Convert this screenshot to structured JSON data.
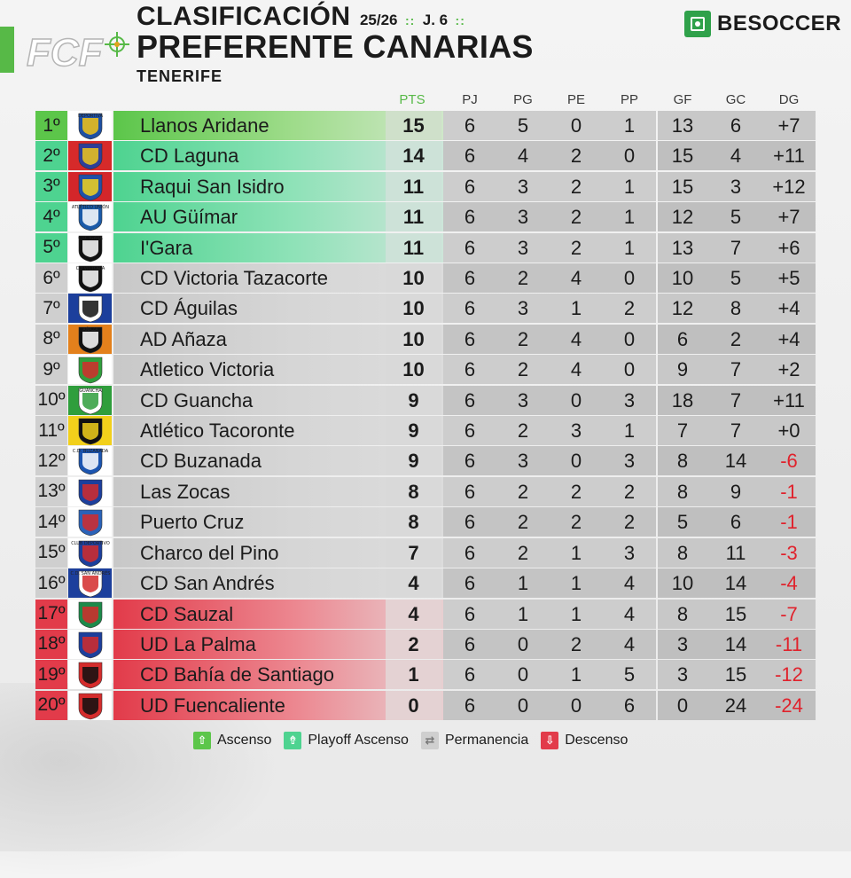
{
  "header": {
    "title": "CLASIFICACIÓN",
    "season": "25/26",
    "separator": "::",
    "matchday": "J. 6",
    "league": "PREFERENTE CANARIAS",
    "region": "TENERIFE",
    "logo_text": "FCF",
    "brand": "BESOCCER",
    "brand_icon": "field-icon"
  },
  "columns": [
    "PTS",
    "PJ",
    "PG",
    "PE",
    "PP",
    "GF",
    "GC",
    "DG"
  ],
  "colors": {
    "ascenso": "#5cc64a",
    "playoff": "#4ed390",
    "permanencia": "#cfcfcf",
    "descenso": "#e23b4a",
    "negative": "#e0222c",
    "brand": "#2fa14a"
  },
  "rows": [
    {
      "pos": "1º",
      "team": "Llanos Aridane",
      "zone": "ascenso",
      "pts": "15",
      "pj": "6",
      "pg": "5",
      "pe": "0",
      "pp": "1",
      "gf": "13",
      "gc": "6",
      "dg": "+7",
      "crest": [
        "#ffffff",
        "#1d4fa3",
        "#f2c318"
      ],
      "crest_text": "DEPORTIVA"
    },
    {
      "pos": "2º",
      "team": "CD Laguna",
      "zone": "playoff",
      "pts": "14",
      "pj": "6",
      "pg": "4",
      "pe": "2",
      "pp": "0",
      "gf": "15",
      "gc": "4",
      "dg": "+11",
      "crest": [
        "#d62a2a",
        "#2d3e99",
        "#f0c51c"
      ],
      "crest_text": ""
    },
    {
      "pos": "3º",
      "team": "Raqui San Isidro",
      "zone": "playoff",
      "pts": "11",
      "pj": "6",
      "pg": "3",
      "pe": "2",
      "pp": "1",
      "gf": "15",
      "gc": "3",
      "dg": "+12",
      "crest": [
        "#d3262a",
        "#2050a8",
        "#f4d21f"
      ],
      "crest_text": ""
    },
    {
      "pos": "4º",
      "team": "AU Güímar",
      "zone": "playoff",
      "pts": "11",
      "pj": "6",
      "pg": "3",
      "pe": "2",
      "pp": "1",
      "gf": "12",
      "gc": "5",
      "dg": "+7",
      "crest": [
        "#ffffff",
        "#1b5aa8",
        "#ffffff"
      ],
      "crest_text": "ATLÉTICO UNIÓN"
    },
    {
      "pos": "5º",
      "team": "I'Gara",
      "zone": "playoff",
      "pts": "11",
      "pj": "6",
      "pg": "3",
      "pe": "2",
      "pp": "1",
      "gf": "13",
      "gc": "7",
      "dg": "+6",
      "crest": [
        "#ffffff",
        "#111111",
        "#ffffff"
      ],
      "crest_text": "C.D. IGARA"
    },
    {
      "pos": "6º",
      "team": "CD Victoria Tazacorte",
      "zone": "permanencia",
      "pts": "10",
      "pj": "6",
      "pg": "2",
      "pe": "4",
      "pp": "0",
      "gf": "10",
      "gc": "5",
      "dg": "+5",
      "crest": [
        "#ffffff",
        "#111111",
        "#ffffff"
      ],
      "crest_text": "CD VICTORIA"
    },
    {
      "pos": "7º",
      "team": "CD Águilas",
      "zone": "permanencia",
      "pts": "10",
      "pj": "6",
      "pg": "3",
      "pe": "1",
      "pp": "2",
      "gf": "12",
      "gc": "8",
      "dg": "+4",
      "crest": [
        "#1c3f9c",
        "#ffffff",
        "#111111"
      ],
      "crest_text": ""
    },
    {
      "pos": "8º",
      "team": "AD Añaza",
      "zone": "permanencia",
      "pts": "10",
      "pj": "6",
      "pg": "2",
      "pe": "4",
      "pp": "0",
      "gf": "6",
      "gc": "2",
      "dg": "+4",
      "crest": [
        "#e3801c",
        "#111111",
        "#ffffff"
      ],
      "crest_text": "AÑAZA"
    },
    {
      "pos": "9º",
      "team": "Atletico Victoria",
      "zone": "permanencia",
      "pts": "10",
      "pj": "6",
      "pg": "2",
      "pe": "4",
      "pp": "0",
      "gf": "9",
      "gc": "7",
      "dg": "+2",
      "crest": [
        "#ffffff",
        "#2f9e3c",
        "#d42c2c"
      ],
      "crest_text": ""
    },
    {
      "pos": "10º",
      "team": "CD Guancha",
      "zone": "permanencia",
      "pts": "9",
      "pj": "6",
      "pg": "3",
      "pe": "0",
      "pp": "3",
      "gf": "18",
      "gc": "7",
      "dg": "+11",
      "crest": [
        "#2f9e3c",
        "#ffffff",
        "#2f9e3c"
      ],
      "crest_text": "GUANCHA"
    },
    {
      "pos": "11º",
      "team": "Atlético Tacoronte",
      "zone": "permanencia",
      "pts": "9",
      "pj": "6",
      "pg": "2",
      "pe": "3",
      "pp": "1",
      "gf": "7",
      "gc": "7",
      "dg": "+0",
      "crest": [
        "#f2d01b",
        "#111111",
        "#f2d01b"
      ],
      "crest_text": ""
    },
    {
      "pos": "12º",
      "team": "CD Buzanada",
      "zone": "permanencia",
      "pts": "9",
      "pj": "6",
      "pg": "3",
      "pe": "0",
      "pp": "3",
      "gf": "8",
      "gc": "14",
      "dg": "-6",
      "crest": [
        "#ffffff",
        "#1c55b0",
        "#ffffff"
      ],
      "crest_text": "C.D. BUZANADA"
    },
    {
      "pos": "13º",
      "team": "Las Zocas",
      "zone": "permanencia",
      "pts": "8",
      "pj": "6",
      "pg": "2",
      "pe": "2",
      "pp": "2",
      "gf": "8",
      "gc": "9",
      "dg": "-1",
      "crest": [
        "#ffffff",
        "#1c3f9c",
        "#d42c2c"
      ],
      "crest_text": ""
    },
    {
      "pos": "14º",
      "team": "Puerto Cruz",
      "zone": "permanencia",
      "pts": "8",
      "pj": "6",
      "pg": "2",
      "pe": "2",
      "pp": "2",
      "gf": "5",
      "gc": "6",
      "dg": "-1",
      "crest": [
        "#ffffff",
        "#2a62b8",
        "#d42c2c"
      ],
      "crest_text": ""
    },
    {
      "pos": "15º",
      "team": "Charco del Pino",
      "zone": "permanencia",
      "pts": "7",
      "pj": "6",
      "pg": "2",
      "pe": "1",
      "pp": "3",
      "gf": "8",
      "gc": "11",
      "dg": "-3",
      "crest": [
        "#ffffff",
        "#1c3f9c",
        "#d42c2c"
      ],
      "crest_text": "CLUB DEPORTIVO"
    },
    {
      "pos": "16º",
      "team": "CD San Andrés",
      "zone": "permanencia",
      "pts": "4",
      "pj": "6",
      "pg": "1",
      "pe": "1",
      "pp": "4",
      "gf": "10",
      "gc": "14",
      "dg": "-4",
      "crest": [
        "#1c3f9c",
        "#ffffff",
        "#d42c2c"
      ],
      "crest_text": "C.D. SAN ANDRÉS"
    },
    {
      "pos": "17º",
      "team": "CD Sauzal",
      "zone": "descenso",
      "pts": "4",
      "pj": "6",
      "pg": "1",
      "pe": "1",
      "pp": "4",
      "gf": "8",
      "gc": "15",
      "dg": "-7",
      "crest": [
        "#ffffff",
        "#1c8a4a",
        "#d42c2c"
      ],
      "crest_text": ""
    },
    {
      "pos": "18º",
      "team": "UD La Palma",
      "zone": "descenso",
      "pts": "2",
      "pj": "6",
      "pg": "0",
      "pe": "2",
      "pp": "4",
      "gf": "3",
      "gc": "14",
      "dg": "-11",
      "crest": [
        "#ffffff",
        "#1c3f9c",
        "#d42c2c"
      ],
      "crest_text": ""
    },
    {
      "pos": "19º",
      "team": "CD Bahía de Santiago",
      "zone": "descenso",
      "pts": "1",
      "pj": "6",
      "pg": "0",
      "pe": "1",
      "pp": "5",
      "gf": "3",
      "gc": "15",
      "dg": "-12",
      "crest": [
        "#ffffff",
        "#d42c2c",
        "#111111"
      ],
      "crest_text": ""
    },
    {
      "pos": "20º",
      "team": "UD Fuencaliente",
      "zone": "descenso",
      "pts": "0",
      "pj": "6",
      "pg": "0",
      "pe": "0",
      "pp": "6",
      "gf": "0",
      "gc": "24",
      "dg": "-24",
      "crest": [
        "#ffffff",
        "#d42c2c",
        "#111111"
      ],
      "crest_text": ""
    }
  ],
  "legend": [
    {
      "label": "Ascenso",
      "icon": "arrow-up-icon",
      "glyph": "⇧",
      "zone": "ascenso"
    },
    {
      "label": "Playoff Ascenso",
      "icon": "playoff-icon",
      "glyph": "⇮",
      "zone": "playoff"
    },
    {
      "label": "Permanencia",
      "icon": "permanencia-icon",
      "glyph": "⇄",
      "zone": "permanencia"
    },
    {
      "label": "Descenso",
      "icon": "arrow-down-icon",
      "glyph": "⇩",
      "zone": "descenso"
    }
  ]
}
